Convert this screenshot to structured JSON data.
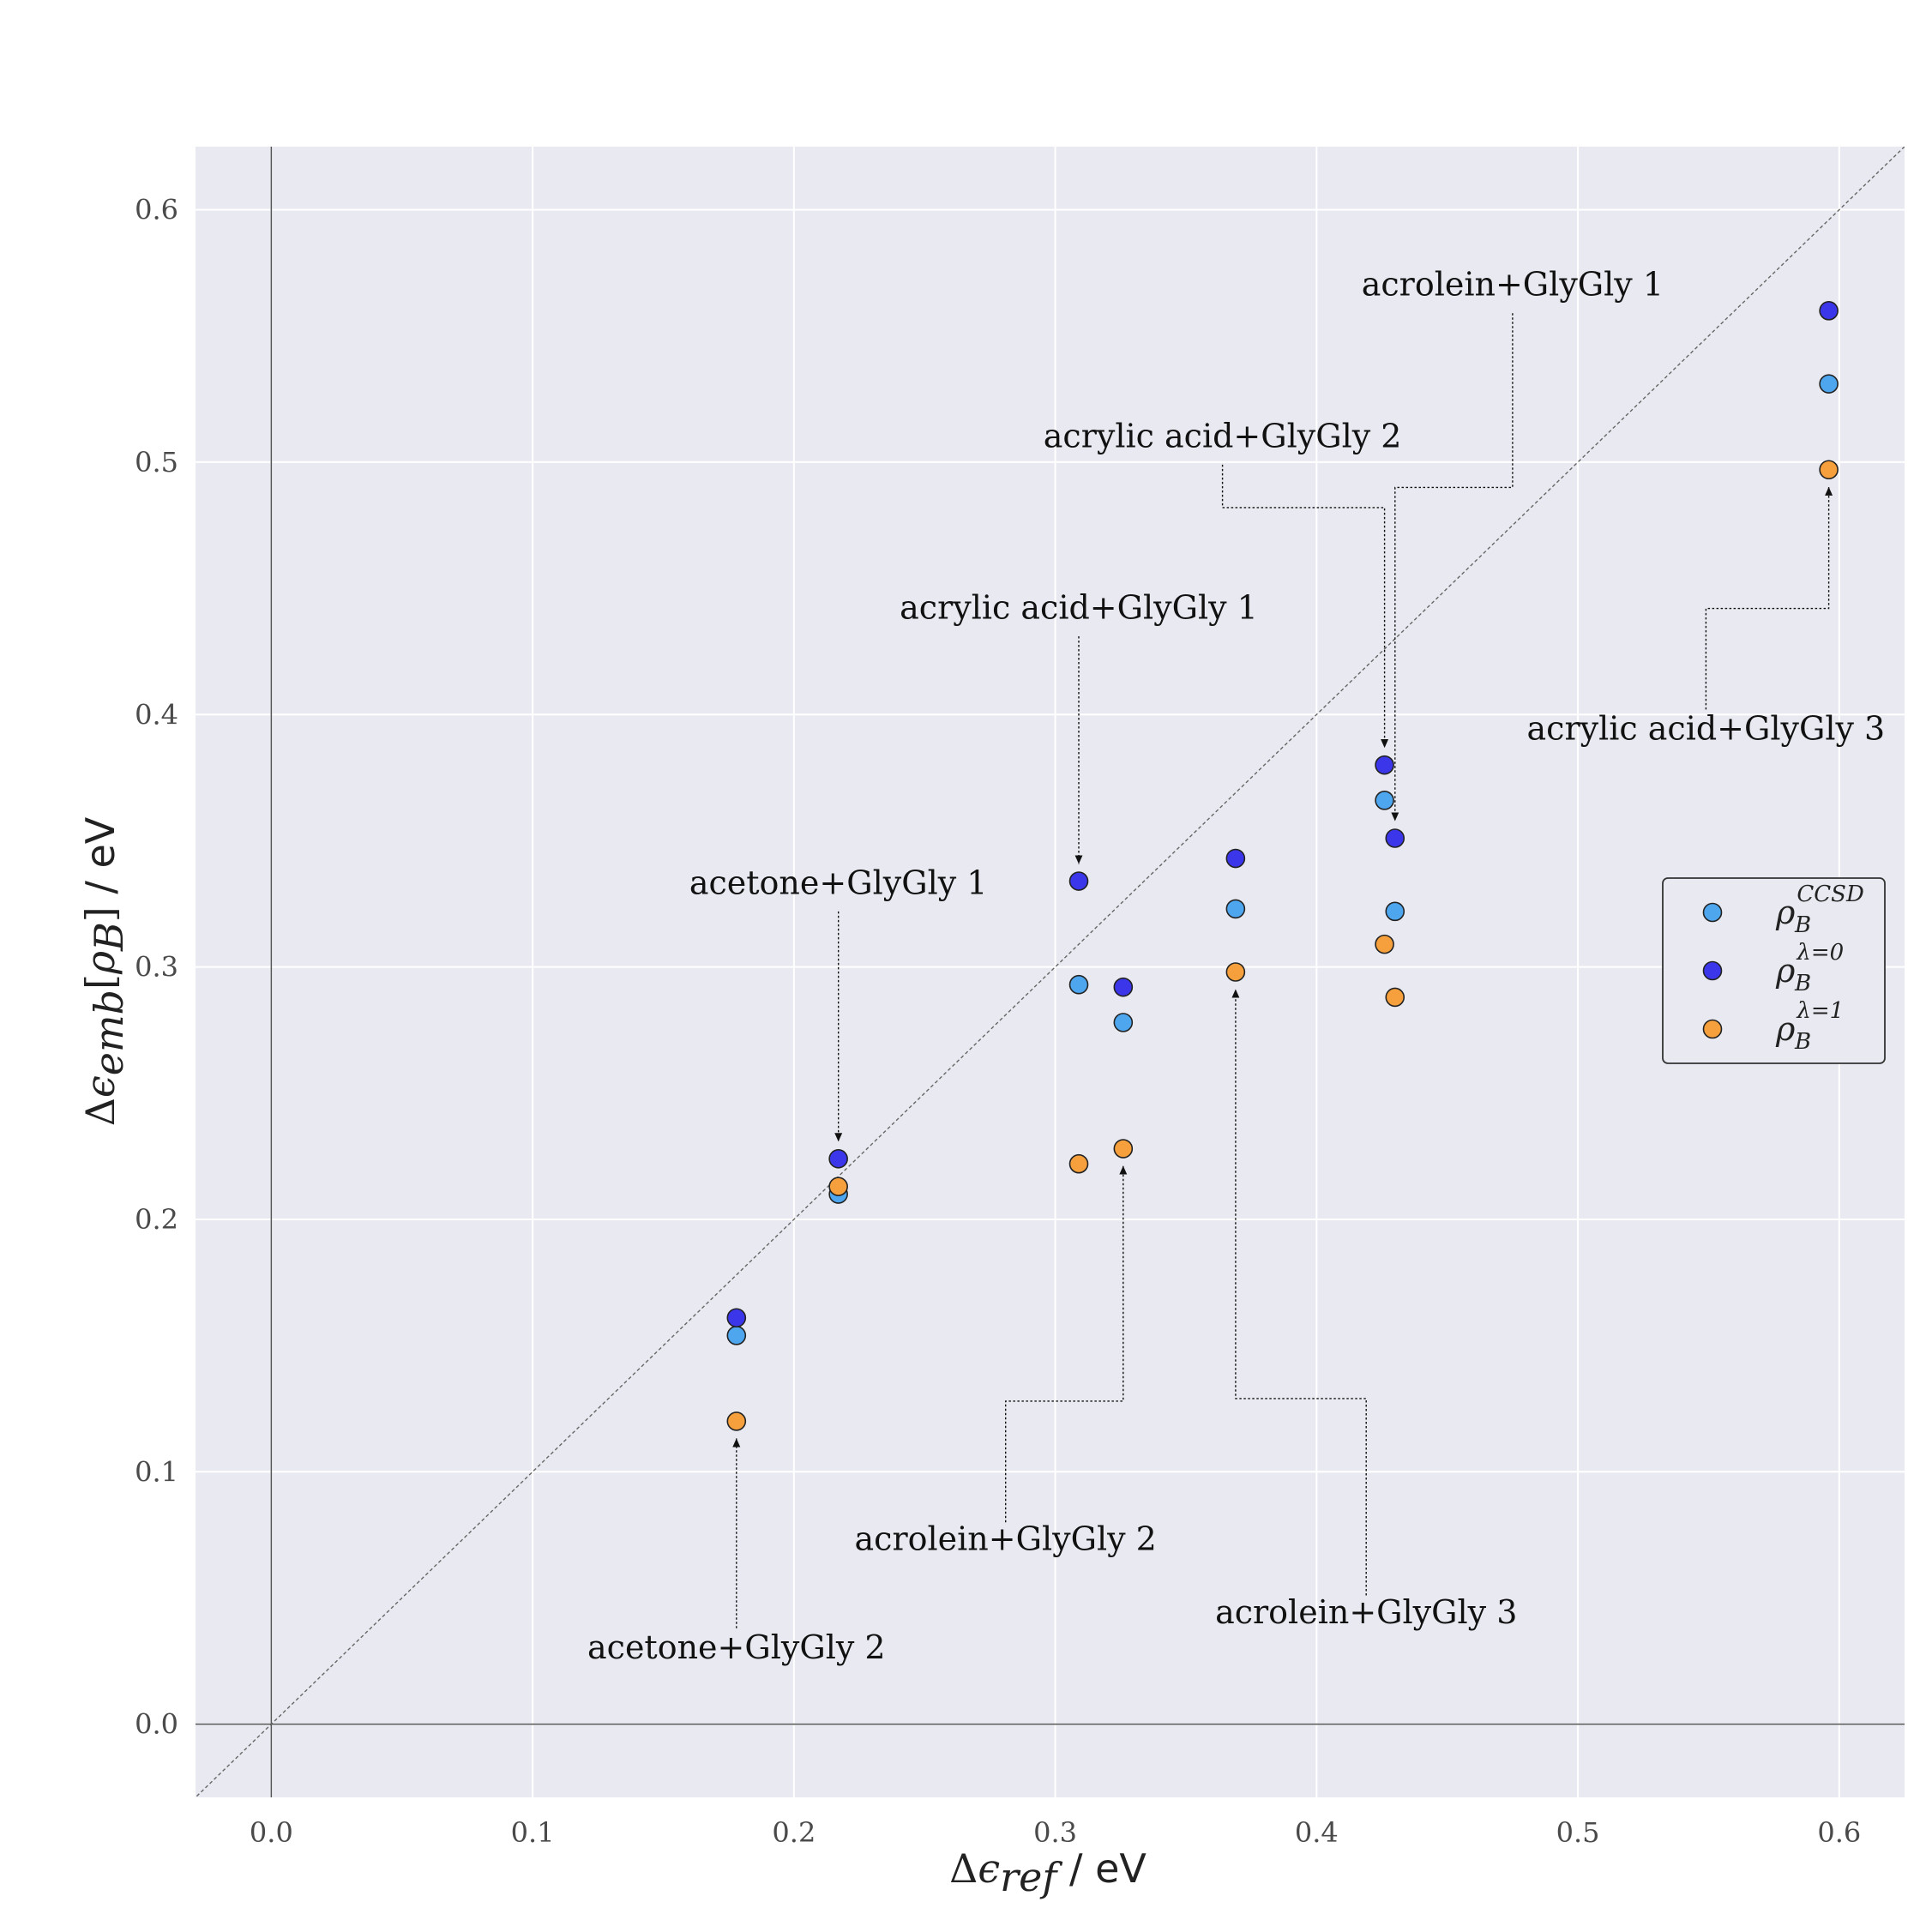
{
  "chart_data": {
    "type": "scatter",
    "title": "",
    "xlabel": "Δε_ref / eV",
    "ylabel": "Δε_emb[ρ_B] / eV",
    "xlim": [
      -0.029,
      0.625
    ],
    "ylim": [
      -0.029,
      0.625
    ],
    "xticks": [
      "0.0",
      "0.1",
      "0.2",
      "0.3",
      "0.4",
      "0.5",
      "0.6"
    ],
    "yticks": [
      "0.0",
      "0.1",
      "0.2",
      "0.3",
      "0.4",
      "0.5",
      "0.6"
    ],
    "grid": true,
    "reference_line": "y = x",
    "legend_position": "center-right",
    "x": [
      0.178,
      0.217,
      0.309,
      0.326,
      0.369,
      0.426,
      0.43,
      0.596
    ],
    "series": [
      {
        "name": "ρ_B^CCSD",
        "base": "ρ",
        "sub": "B",
        "sup": "CCSD",
        "color": "#4ea6ee",
        "values": [
          0.154,
          0.21,
          0.293,
          0.278,
          0.323,
          0.366,
          0.322,
          0.531
        ]
      },
      {
        "name": "ρ_B^λ=0",
        "base": "ρ",
        "sub": "B",
        "sup": "λ=0",
        "color": "#3b36ea",
        "values": [
          0.161,
          0.224,
          0.334,
          0.292,
          0.343,
          0.38,
          0.351,
          0.56
        ]
      },
      {
        "name": "ρ_B^λ=1",
        "base": "ρ",
        "sub": "B",
        "sup": "λ=1",
        "color": "#f5a03c",
        "values": [
          0.12,
          0.213,
          0.222,
          0.228,
          0.298,
          0.309,
          0.288,
          0.497
        ]
      }
    ],
    "annotations": [
      {
        "text": "acetone+GlyGly 1",
        "point": [
          0.217,
          0.224
        ]
      },
      {
        "text": "acetone+GlyGly 2",
        "point": [
          0.178,
          0.12
        ]
      },
      {
        "text": "acrylic acid+GlyGly 1",
        "point": [
          0.309,
          0.334
        ]
      },
      {
        "text": "acrylic acid+GlyGly 2",
        "point": [
          0.426,
          0.38
        ]
      },
      {
        "text": "acrolein+GlyGly 1",
        "point": [
          0.43,
          0.351
        ]
      },
      {
        "text": "acrolein+GlyGly 2",
        "point": [
          0.326,
          0.228
        ]
      },
      {
        "text": "acrolein+GlyGly 3",
        "point": [
          0.369,
          0.298
        ]
      },
      {
        "text": "acrylic acid+GlyGly 3",
        "point": [
          0.596,
          0.497
        ]
      }
    ]
  }
}
